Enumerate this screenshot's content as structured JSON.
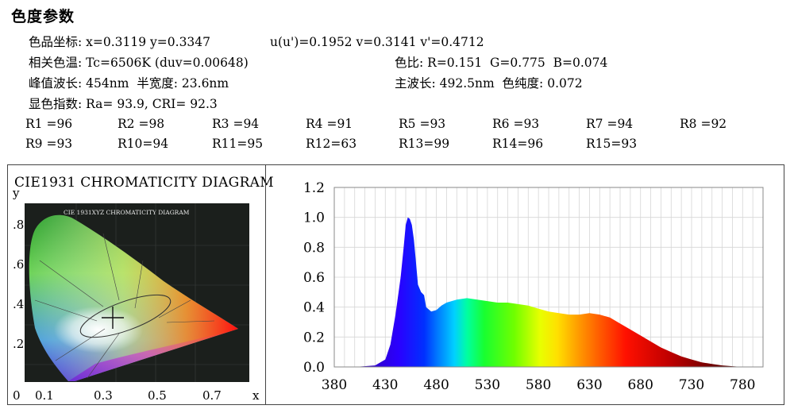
{
  "header": {
    "title": "色度参数"
  },
  "params": [
    {
      "name": "coords",
      "segments": [
        "色品坐标: x=0.3119 y=0.3347",
        "u(u')=0.1952 v=0.3141 v'=0.4712"
      ]
    },
    {
      "name": "cct",
      "segments": [
        "相关色温: Tc=6506K (duv=0.00648)",
        "色比: R=0.151  G=0.775  B=0.074"
      ]
    },
    {
      "name": "peak",
      "segments": [
        "峰值波长: 454nm  半宽度: 23.6nm",
        "主波长: 492.5nm  色纯度: 0.072"
      ]
    },
    {
      "name": "cri",
      "segments": [
        "显色指数: Ra= 93.9, CRI= 92.3"
      ]
    }
  ],
  "r_values": [
    [
      "R1 =96",
      "R2 =98",
      "R3 =94",
      "R4 =91",
      "R5 =93",
      "R6 =93",
      "R7 =94",
      "R8 =92"
    ],
    [
      "R9 =93",
      "R10=94",
      "R11=95",
      "R12=63",
      "R13=99",
      "R14=96",
      "R15=93"
    ]
  ],
  "cie": {
    "title": "CIE1931 CHROMATICITY DIAGRAM",
    "inner_title": "CIE 1931XYZ CHROMATICITY DIAGRAM",
    "ylabel": "y",
    "xlabel": "x",
    "y_ticks": [
      ".8",
      ".6",
      ".4",
      ".2"
    ],
    "x_ticks": [
      "0",
      "0.1",
      "0.3",
      "0.5",
      "0.7"
    ],
    "point": {
      "x": 0.3119,
      "y": 0.3347
    }
  },
  "chart_data": {
    "type": "area",
    "x": [
      380,
      400,
      420,
      430,
      435,
      440,
      445,
      448,
      450,
      452,
      454,
      456,
      458,
      460,
      462,
      465,
      468,
      470,
      475,
      480,
      485,
      490,
      500,
      510,
      520,
      530,
      540,
      550,
      560,
      570,
      580,
      590,
      600,
      610,
      620,
      630,
      640,
      650,
      660,
      670,
      680,
      690,
      700,
      710,
      720,
      730,
      740,
      750,
      760,
      770,
      780
    ],
    "y": [
      0.0,
      0.0,
      0.01,
      0.05,
      0.15,
      0.35,
      0.6,
      0.8,
      0.95,
      1.0,
      0.99,
      0.95,
      0.85,
      0.7,
      0.55,
      0.5,
      0.48,
      0.4,
      0.37,
      0.38,
      0.41,
      0.43,
      0.45,
      0.46,
      0.45,
      0.44,
      0.43,
      0.43,
      0.42,
      0.41,
      0.39,
      0.37,
      0.36,
      0.35,
      0.35,
      0.36,
      0.35,
      0.33,
      0.29,
      0.25,
      0.21,
      0.17,
      0.13,
      0.1,
      0.07,
      0.05,
      0.03,
      0.02,
      0.01,
      0.005,
      0.0
    ],
    "xlim": [
      380,
      800
    ],
    "ylim": [
      0.0,
      1.2
    ],
    "x_ticks": [
      380,
      430,
      480,
      530,
      580,
      630,
      680,
      730,
      780
    ],
    "y_ticks": [
      "0.0",
      "0.2",
      "0.4",
      "0.6",
      "0.8",
      "1.0",
      "1.2"
    ],
    "grid": true
  }
}
